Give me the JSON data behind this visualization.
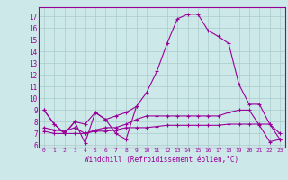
{
  "xlabel": "Windchill (Refroidissement éolien,°C)",
  "ylabel": "",
  "background_color": "#cce8e8",
  "grid_color": "#aacccc",
  "line_color": "#990099",
  "xlim": [
    -0.5,
    23.5
  ],
  "ylim": [
    5.8,
    17.8
  ],
  "yticks": [
    6,
    7,
    8,
    9,
    10,
    11,
    12,
    13,
    14,
    15,
    16,
    17
  ],
  "xticks": [
    0,
    1,
    2,
    3,
    4,
    5,
    6,
    7,
    8,
    9,
    10,
    11,
    12,
    13,
    14,
    15,
    16,
    17,
    18,
    19,
    20,
    21,
    22,
    23
  ],
  "lines": [
    {
      "x": [
        0,
        1,
        2,
        3,
        4,
        5,
        6,
        7,
        8,
        9
      ],
      "y": [
        9.0,
        7.8,
        7.0,
        8.0,
        6.2,
        8.8,
        8.2,
        7.0,
        6.5,
        9.3
      ]
    },
    {
      "x": [
        0,
        1,
        2,
        3,
        4,
        5,
        6,
        7,
        8,
        9,
        10,
        11,
        12,
        13,
        14,
        15,
        16,
        17,
        18,
        19,
        20,
        21,
        22,
        23
      ],
      "y": [
        9.0,
        7.8,
        7.0,
        8.0,
        7.8,
        8.8,
        8.2,
        8.5,
        8.8,
        9.3,
        10.5,
        12.3,
        14.7,
        16.8,
        17.2,
        17.2,
        15.8,
        15.3,
        14.7,
        11.2,
        9.5,
        9.5,
        7.8,
        6.5
      ]
    },
    {
      "x": [
        0,
        1,
        2,
        3,
        4,
        5,
        6,
        7,
        8,
        9,
        10,
        11,
        12,
        13,
        14,
        15,
        16,
        17,
        18,
        19,
        20,
        21,
        22,
        23
      ],
      "y": [
        7.2,
        7.0,
        7.0,
        7.0,
        7.0,
        7.2,
        7.2,
        7.3,
        7.5,
        7.5,
        7.5,
        7.6,
        7.7,
        7.7,
        7.7,
        7.7,
        7.7,
        7.7,
        7.8,
        7.8,
        7.8,
        7.8,
        7.8,
        7.0
      ]
    },
    {
      "x": [
        0,
        1,
        2,
        3,
        4,
        5,
        6,
        7,
        8,
        9,
        10,
        11,
        12,
        13,
        14,
        15,
        16,
        17,
        18,
        19,
        20,
        21,
        22,
        23
      ],
      "y": [
        7.5,
        7.3,
        7.2,
        7.5,
        7.0,
        7.3,
        7.5,
        7.5,
        7.8,
        8.2,
        8.5,
        8.5,
        8.5,
        8.5,
        8.5,
        8.5,
        8.5,
        8.5,
        8.8,
        9.0,
        9.0,
        7.7,
        6.3,
        6.5
      ]
    }
  ]
}
